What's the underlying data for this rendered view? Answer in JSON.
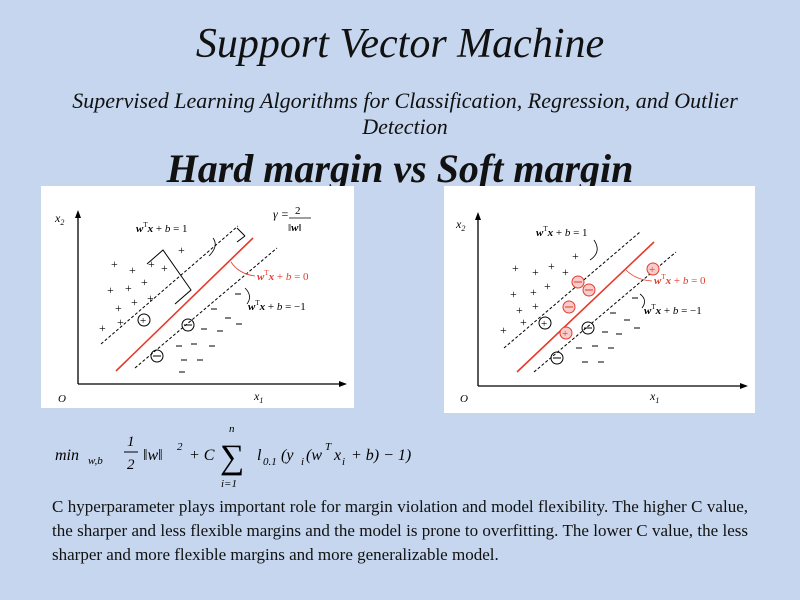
{
  "slide": {
    "title": "Support Vector Machine",
    "subtitle": "Supervised Learning Algorithms for Classification, Regression, and Outlier Detection",
    "heading": "Hard margin vs Soft margin",
    "paragraph": "C hyperparameter plays important role for margin violation and model flexibility. The higher C value, the sharper and less flexible margins and the model is prone to overfitting. The lower C value,  the less sharper and more flexible margins and more generalizable model."
  },
  "hard_margin_figure": {
    "x_axis_label": "x1",
    "y_axis_label": "x2",
    "origin_label": "O",
    "upper_margin_label": "wTx + b = 1",
    "decision_boundary_label": "wTx + b = 0",
    "lower_margin_label": "wTx + b = −1",
    "margin_width_label": "γ = 2 / ‖w‖",
    "boundary_color": "#e53a2a"
  },
  "soft_margin_figure": {
    "x_axis_label": "x1",
    "y_axis_label": "x2",
    "origin_label": "O",
    "upper_margin_label": "wTx + b = 1",
    "decision_boundary_label": "wTx + b = 0",
    "lower_margin_label": "wTx + b = −1",
    "boundary_color": "#e53a2a",
    "violation_color": "#e53a2a"
  },
  "formula": {
    "text": "min_{w,b} (1/2)‖w‖² + C Σ_{i=1}^{n} l_{0.1}(y_i(w^T x_i + b) − 1)",
    "min": "min",
    "min_sub": "w,b",
    "half_num": "1",
    "half_den": "2",
    "norm": "‖w‖",
    "sq": "2",
    "plus_c": "+ C",
    "sigma": "∑",
    "sum_upper": "n",
    "sum_lower": "i=1",
    "loss": "l",
    "loss_sub": "0.1",
    "loss_args": "(y",
    "yi_sub": "i",
    "w": "(w",
    "wT": "T",
    "x": "x",
    "xi_sub": "i",
    "tail": "+ b) − 1)"
  }
}
